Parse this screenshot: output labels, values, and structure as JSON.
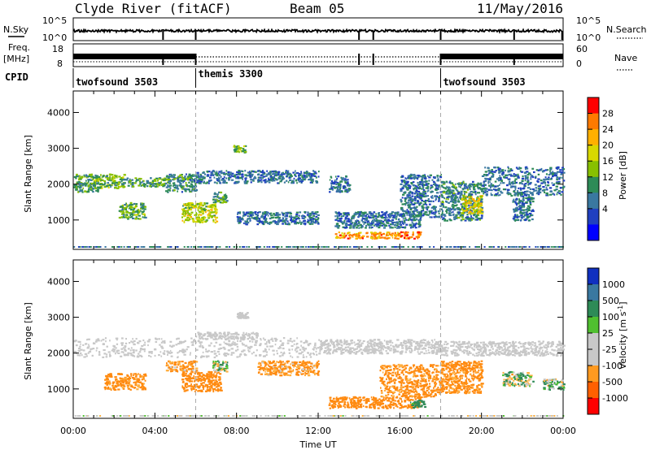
{
  "header": {
    "station": "Clyde River (fitACF)",
    "beam": "Beam 05",
    "date": "11/May/2016"
  },
  "nsky_panel": {
    "left_label": "N.Sky",
    "right_label": "N.Search",
    "left_ticks": [
      "10^5",
      "10^0"
    ],
    "right_ticks": [
      "10^5",
      "10^0"
    ]
  },
  "freq_panel": {
    "left_label_1": "Freq.",
    "left_label_2": "[MHz]",
    "right_label": "Nave",
    "left_ticks": [
      "18",
      "8"
    ],
    "right_ticks": [
      "60",
      "0"
    ]
  },
  "cpid": {
    "label": "CPID",
    "segments": [
      {
        "name": "twofsound 3503",
        "start_hour": 0,
        "end_hour": 6
      },
      {
        "name": "themis 3300",
        "start_hour": 6,
        "end_hour": 18
      },
      {
        "name": "twofsound 3503",
        "start_hour": 18,
        "end_hour": 24
      }
    ]
  },
  "x_axis": {
    "label": "Time UT",
    "ticks": [
      "00:00",
      "04:00",
      "08:00",
      "12:00",
      "16:00",
      "20:00",
      "00:00"
    ],
    "range_hours": [
      0,
      24
    ]
  },
  "power_panel": {
    "ylabel": "Slant Range [km]",
    "yticks": [
      "4000",
      "3000",
      "2000",
      "1000"
    ],
    "colorbar_label": "Power [dB]",
    "colorbar_ticks": [
      "28",
      "24",
      "20",
      "16",
      "12",
      "8",
      "4"
    ],
    "colorbar_colors": [
      "#ff0000",
      "#ff7a00",
      "#ffb000",
      "#d8d800",
      "#88c000",
      "#2e8b57",
      "#3a78a0",
      "#2040c0",
      "#0000ff"
    ]
  },
  "velocity_panel": {
    "ylabel": "Slant Range [km]",
    "yticks": [
      "4000",
      "3000",
      "2000",
      "1000"
    ],
    "colorbar_label": "Velocity [m s^-1]",
    "colorbar_ticks": [
      "1000",
      "500",
      "100",
      "25",
      "-25",
      "-100",
      "-500",
      "-1000"
    ],
    "colorbar_colors": [
      "#1030c0",
      "#3a78a0",
      "#2e8b57",
      "#50c030",
      "#c8c8c8",
      "#c8c8c8",
      "#ff9a20",
      "#ff6000",
      "#ff0000"
    ]
  },
  "chart_data": {
    "type": "heatmap",
    "x_unit": "hours UT",
    "y_unit": "slant range km",
    "ylim": [
      180,
      4600
    ],
    "xlim": [
      0,
      24
    ],
    "power_regions": [
      {
        "t0": 0.0,
        "t1": 1.2,
        "r0": 1800,
        "r1": 2300,
        "power": 12
      },
      {
        "t0": 1.0,
        "t1": 2.5,
        "r0": 1900,
        "r1": 2300,
        "power": 14
      },
      {
        "t0": 2.5,
        "t1": 4.5,
        "r0": 1950,
        "r1": 2200,
        "power": 12
      },
      {
        "t0": 2.2,
        "t1": 3.5,
        "r0": 1050,
        "r1": 1500,
        "power": 14
      },
      {
        "t0": 4.5,
        "t1": 6.0,
        "r0": 1800,
        "r1": 2300,
        "power": 10
      },
      {
        "t0": 5.3,
        "t1": 7.0,
        "r0": 950,
        "r1": 1500,
        "power": 18
      },
      {
        "t0": 6.8,
        "t1": 7.5,
        "r0": 1500,
        "r1": 1800,
        "power": 12
      },
      {
        "t0": 7.8,
        "t1": 8.4,
        "r0": 2900,
        "r1": 3100,
        "power": 16
      },
      {
        "t0": 6.0,
        "t1": 12.0,
        "r0": 2050,
        "r1": 2400,
        "power": 8
      },
      {
        "t0": 8.0,
        "t1": 12.0,
        "r0": 900,
        "r1": 1250,
        "power": 8
      },
      {
        "t0": 12.5,
        "t1": 13.5,
        "r0": 1800,
        "r1": 2250,
        "power": 8
      },
      {
        "t0": 12.8,
        "t1": 17.0,
        "r0": 800,
        "r1": 1250,
        "power": 8
      },
      {
        "t0": 12.8,
        "t1": 16.0,
        "r0": 500,
        "r1": 680,
        "power": 26
      },
      {
        "t0": 16.0,
        "t1": 17.0,
        "r0": 500,
        "r1": 700,
        "power": 28
      },
      {
        "t0": 16.0,
        "t1": 18.0,
        "r0": 1100,
        "r1": 2300,
        "power": 8
      },
      {
        "t0": 18.0,
        "t1": 20.0,
        "r0": 1000,
        "r1": 2100,
        "power": 10
      },
      {
        "t0": 19.0,
        "t1": 20.0,
        "r0": 1200,
        "r1": 1700,
        "power": 20
      },
      {
        "t0": 20.0,
        "t1": 24.0,
        "r0": 1700,
        "r1": 2500,
        "power": 8
      },
      {
        "t0": 21.5,
        "t1": 22.5,
        "r0": 1000,
        "r1": 1800,
        "power": 8
      }
    ],
    "velocity_regions": [
      {
        "t0": 0.0,
        "t1": 12.0,
        "r0": 1900,
        "r1": 2450,
        "velocity": 0
      },
      {
        "t0": 6.0,
        "t1": 9.0,
        "r0": 2400,
        "r1": 2600,
        "velocity": 0
      },
      {
        "t0": 8.0,
        "t1": 8.5,
        "r0": 3000,
        "r1": 3150,
        "velocity": 0
      },
      {
        "t0": 12.0,
        "t1": 18.0,
        "r0": 2000,
        "r1": 2400,
        "velocity": 0
      },
      {
        "t0": 18.0,
        "t1": 24.0,
        "r0": 1950,
        "r1": 2350,
        "velocity": 0
      },
      {
        "t0": 1.5,
        "t1": 3.5,
        "r0": 1000,
        "r1": 1450,
        "velocity": -200
      },
      {
        "t0": 5.3,
        "t1": 7.2,
        "r0": 950,
        "r1": 1500,
        "velocity": -250
      },
      {
        "t0": 4.5,
        "t1": 6.0,
        "r0": 1500,
        "r1": 1800,
        "velocity": -150
      },
      {
        "t0": 6.8,
        "t1": 7.6,
        "r0": 1500,
        "r1": 1800,
        "velocity": 40
      },
      {
        "t0": 9.0,
        "t1": 12.0,
        "r0": 1400,
        "r1": 1800,
        "velocity": -150
      },
      {
        "t0": 12.5,
        "t1": 17.0,
        "r0": 480,
        "r1": 800,
        "velocity": -300
      },
      {
        "t0": 15.0,
        "t1": 18.0,
        "r0": 800,
        "r1": 1700,
        "velocity": -200
      },
      {
        "t0": 16.5,
        "t1": 17.2,
        "r0": 500,
        "r1": 700,
        "velocity": 150
      },
      {
        "t0": 18.0,
        "t1": 20.0,
        "r0": 900,
        "r1": 1800,
        "velocity": -200
      },
      {
        "t0": 21.0,
        "t1": 22.5,
        "r0": 1100,
        "r1": 1500,
        "velocity": 40
      },
      {
        "t0": 23.0,
        "t1": 24.0,
        "r0": 1000,
        "r1": 1300,
        "velocity": 40
      }
    ],
    "dashed_markers_hours": [
      6.0,
      18.0
    ]
  }
}
